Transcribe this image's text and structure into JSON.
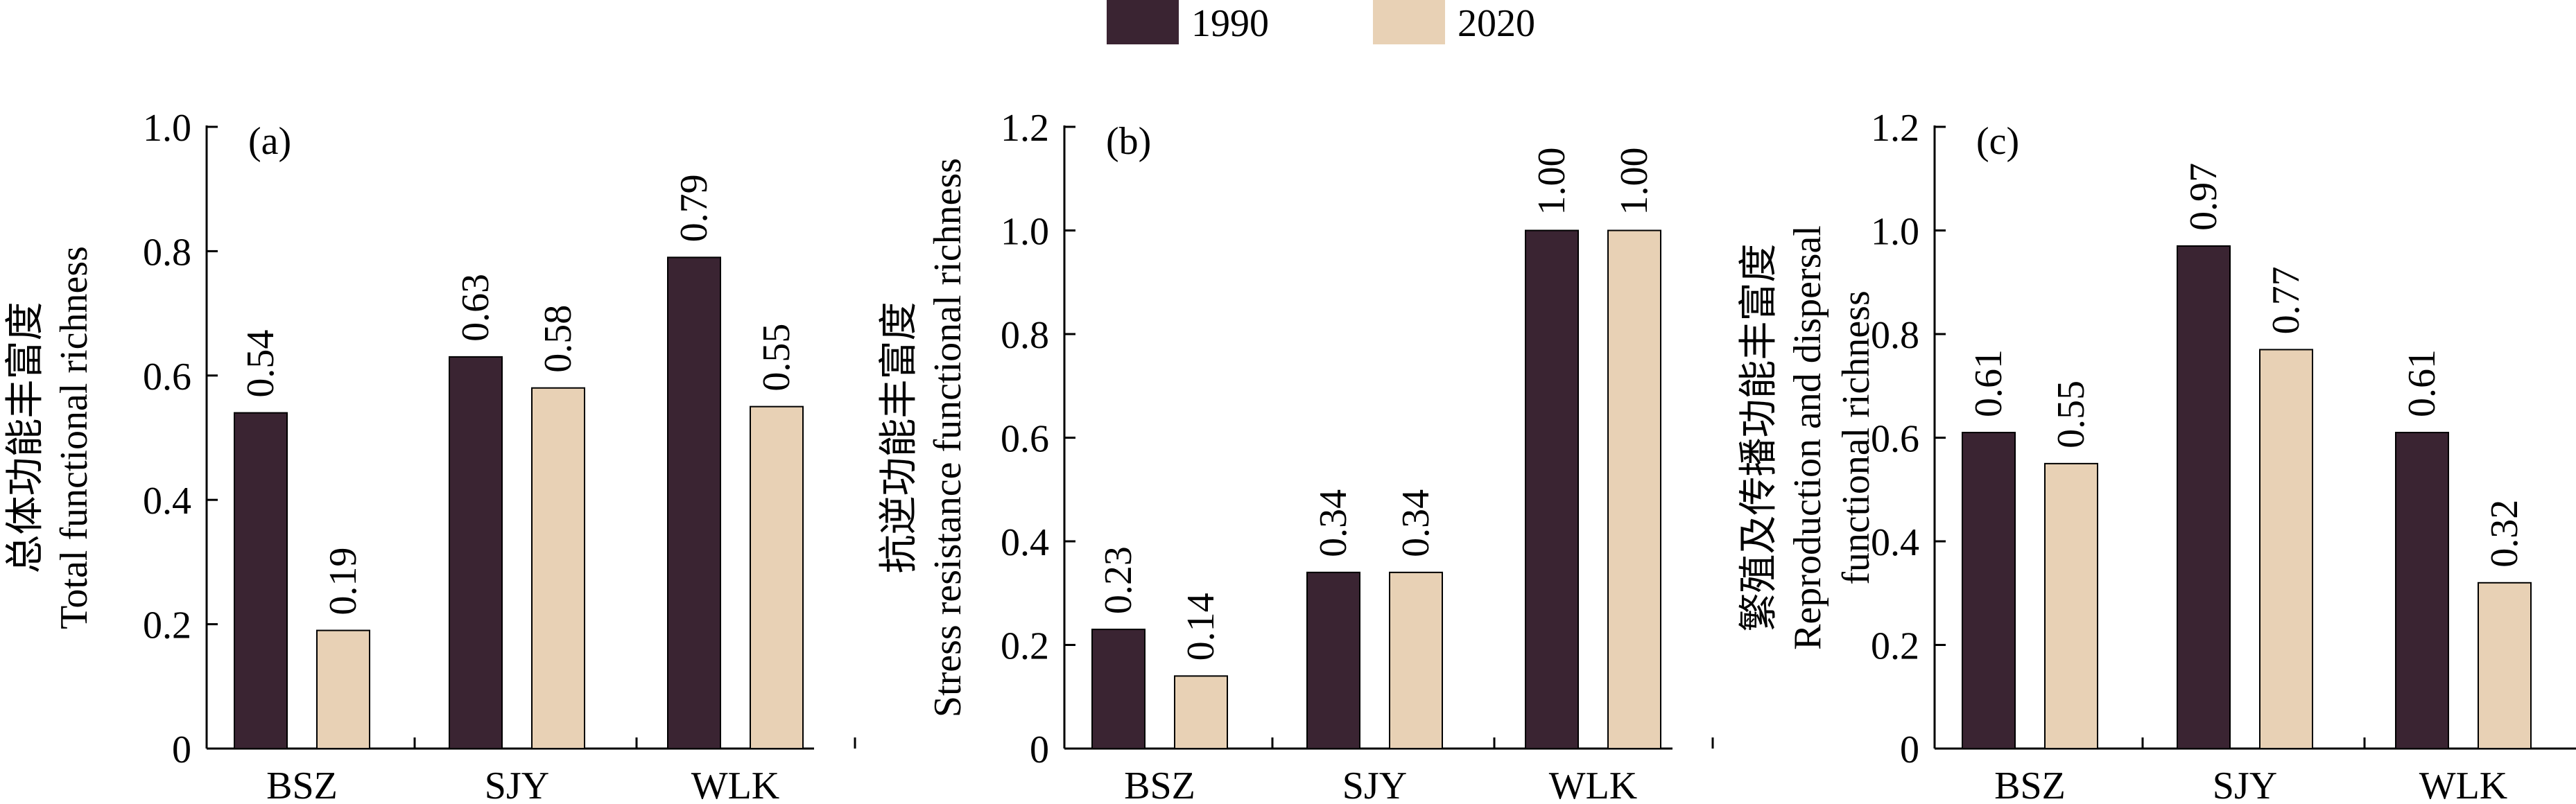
{
  "legend": {
    "position": "top-center",
    "items": [
      {
        "label": "1990",
        "color": "#3a2432"
      },
      {
        "label": "2020",
        "color": "#e8d1b5"
      }
    ]
  },
  "chart_data": [
    {
      "type": "bar",
      "panel_label": "(a)",
      "ylabel_lines": [
        "总体功能丰富度",
        "Total functional richness"
      ],
      "categories": [
        "BSZ",
        "SJY",
        "WLK"
      ],
      "series": [
        {
          "name": "1990",
          "values": [
            0.54,
            0.63,
            0.79
          ],
          "labels": [
            "0.54",
            "0.63",
            "0.79"
          ]
        },
        {
          "name": "2020",
          "values": [
            0.19,
            0.58,
            0.55
          ],
          "labels": [
            "0.19",
            "0.58",
            "0.55"
          ]
        }
      ],
      "ylim": [
        0,
        1.0
      ],
      "yticks": [
        0,
        0.2,
        0.4,
        0.6,
        0.8,
        1.0
      ],
      "ytick_labels": [
        "0",
        "0.2",
        "0.4",
        "0.6",
        "0.8",
        "1.0"
      ],
      "grid": false
    },
    {
      "type": "bar",
      "panel_label": "(b)",
      "ylabel_lines": [
        "抗逆功能丰富度",
        "Stress resistance functional richness"
      ],
      "categories": [
        "BSZ",
        "SJY",
        "WLK"
      ],
      "series": [
        {
          "name": "1990",
          "values": [
            0.23,
            0.34,
            1.0
          ],
          "labels": [
            "0.23",
            "0.34",
            "1.00"
          ]
        },
        {
          "name": "2020",
          "values": [
            0.14,
            0.34,
            1.0
          ],
          "labels": [
            "0.14",
            "0.34",
            "1.00"
          ]
        }
      ],
      "ylim": [
        0,
        1.2
      ],
      "yticks": [
        0,
        0.2,
        0.4,
        0.6,
        0.8,
        1.0,
        1.2
      ],
      "ytick_labels": [
        "0",
        "0.2",
        "0.4",
        "0.6",
        "0.8",
        "1.0",
        "1.2"
      ],
      "grid": false
    },
    {
      "type": "bar",
      "panel_label": "(c)",
      "ylabel_lines": [
        "繁殖及传播功能丰富度",
        "Reproduction and dispersal",
        "functional richness"
      ],
      "categories": [
        "BSZ",
        "SJY",
        "WLK"
      ],
      "series": [
        {
          "name": "1990",
          "values": [
            0.61,
            0.97,
            0.61
          ],
          "labels": [
            "0.61",
            "0.97",
            "0.61"
          ]
        },
        {
          "name": "2020",
          "values": [
            0.55,
            0.77,
            0.32
          ],
          "labels": [
            "0.55",
            "0.77",
            "0.32"
          ]
        }
      ],
      "ylim": [
        0,
        1.2
      ],
      "yticks": [
        0,
        0.2,
        0.4,
        0.6,
        0.8,
        1.0,
        1.2
      ],
      "ytick_labels": [
        "0",
        "0.2",
        "0.4",
        "0.6",
        "0.8",
        "1.0",
        "1.2"
      ],
      "grid": false
    }
  ]
}
